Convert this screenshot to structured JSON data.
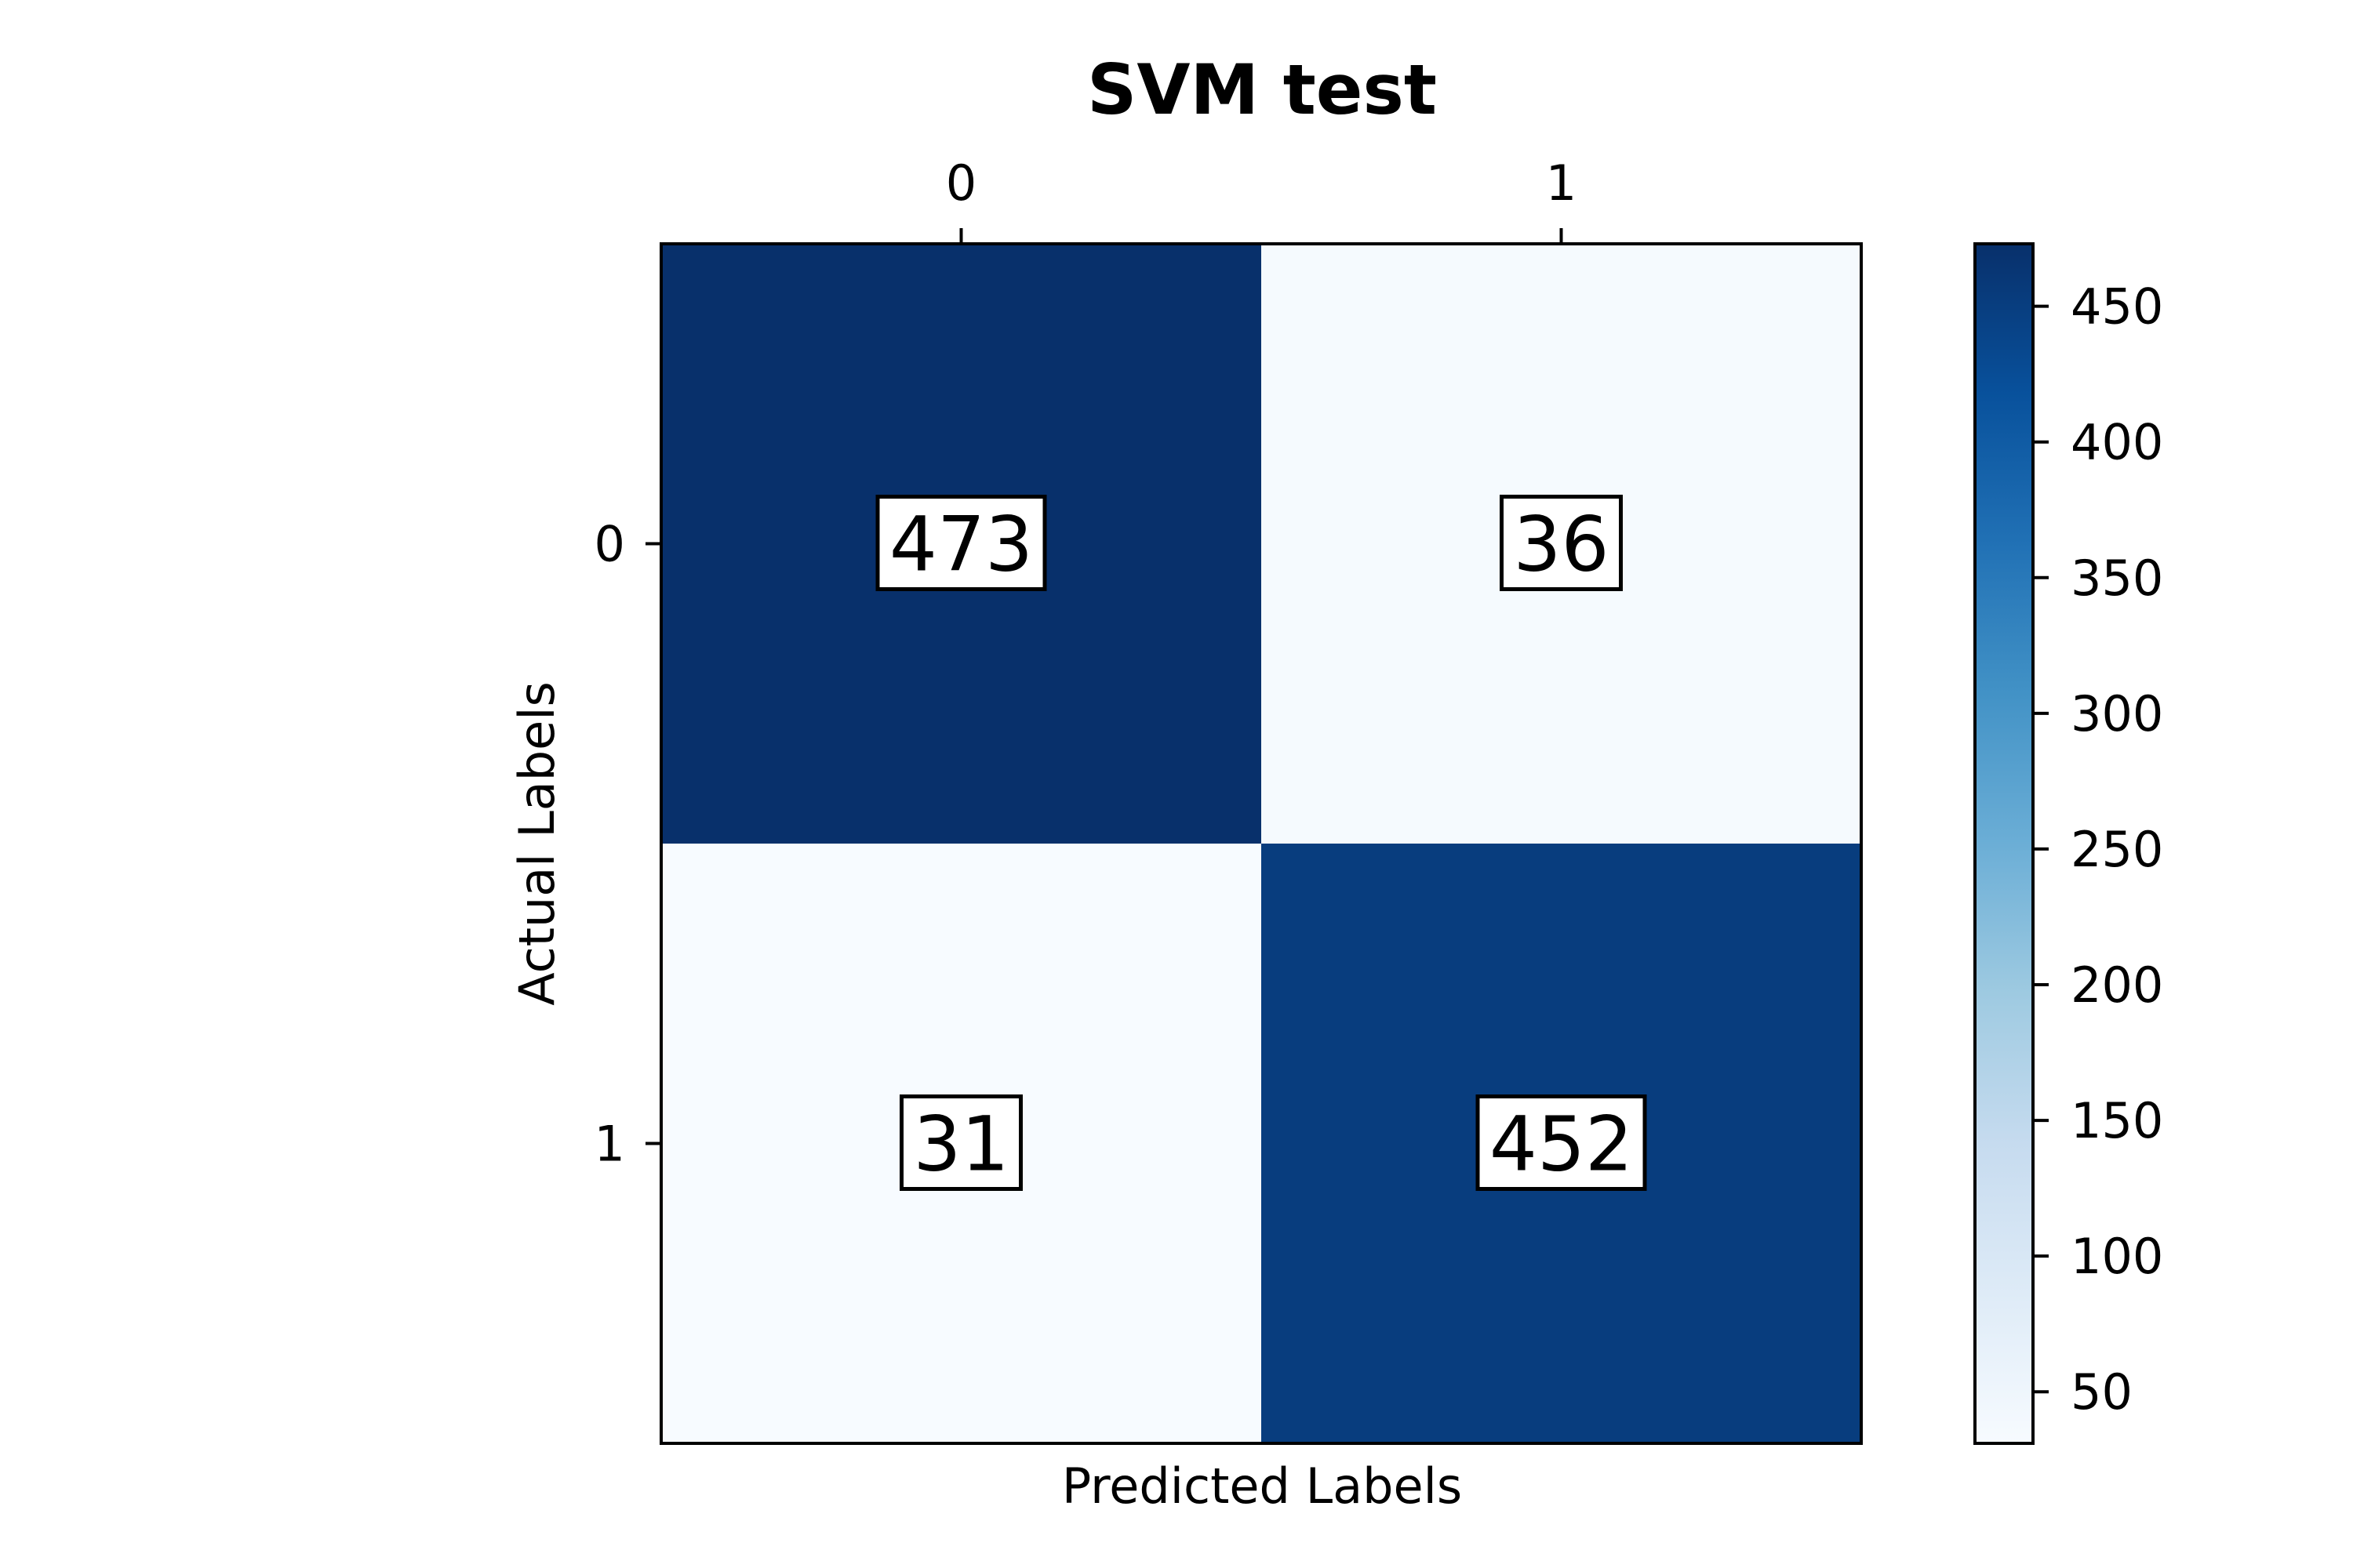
{
  "chart_data": {
    "type": "heatmap",
    "title": "SVM test",
    "xlabel": "Predicted Labels",
    "ylabel": "Actual Labels",
    "x_categories": [
      "0",
      "1"
    ],
    "y_categories": [
      "0",
      "1"
    ],
    "values": [
      [
        473,
        36
      ],
      [
        31,
        452
      ]
    ],
    "colormap": "Blues",
    "colorbar": {
      "range": [
        31,
        473
      ],
      "ticks": [
        "50",
        "100",
        "150",
        "200",
        "250",
        "300",
        "350",
        "400",
        "450"
      ]
    },
    "colors": {
      "low": "#f7fbff",
      "high": "#08306b"
    }
  }
}
